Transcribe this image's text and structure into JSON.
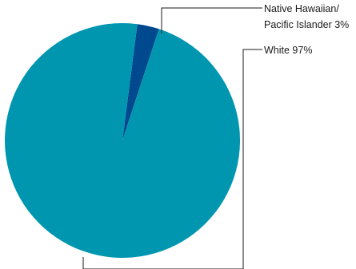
{
  "chart_data": {
    "type": "pie",
    "slices": [
      {
        "label_lines": [
          "Native Hawaiian/",
          "Pacific Islander 3%"
        ],
        "value": 3,
        "color": "#00498f"
      },
      {
        "label_lines": [
          "White 97%"
        ],
        "value": 97,
        "color": "#0096b0"
      }
    ],
    "title": "",
    "legend": "none (direct labels with leader lines)"
  }
}
